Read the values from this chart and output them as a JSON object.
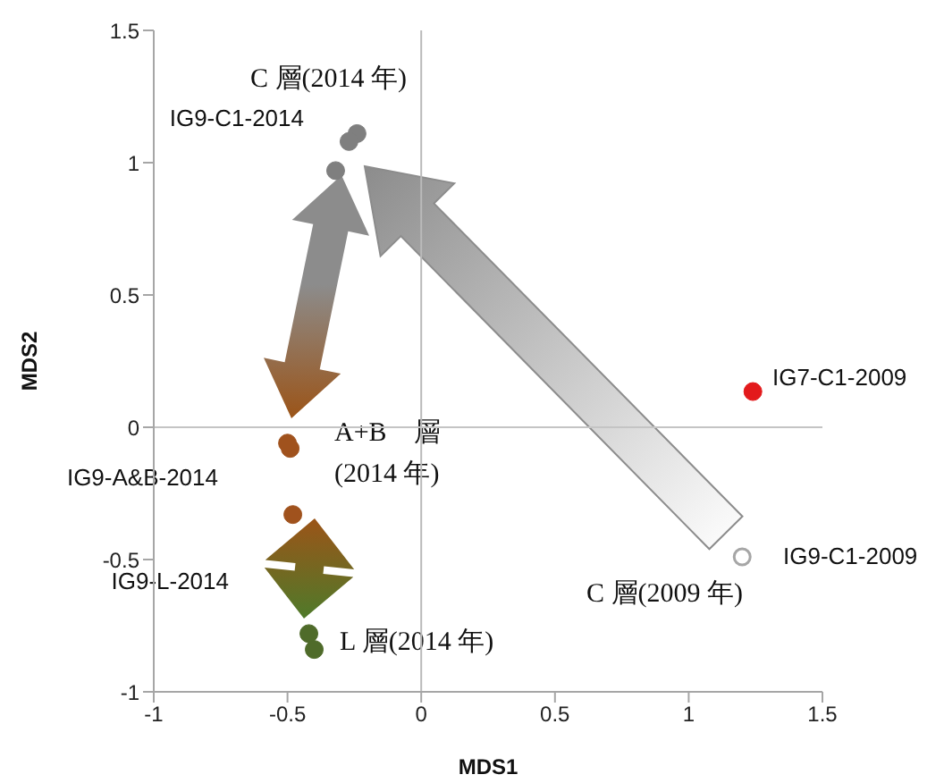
{
  "chart_data": {
    "type": "scatter",
    "xlabel": "MDS1",
    "ylabel": "MDS2",
    "xlim": [
      -1,
      1.5
    ],
    "xticks": [
      -1,
      -0.5,
      0,
      0.5,
      1,
      1.5
    ],
    "ylim": [
      -1,
      1.5
    ],
    "yticks": [
      -1,
      -0.5,
      0,
      0.5,
      1,
      1.5
    ],
    "marker": "circle",
    "series": [
      {
        "color": "#7f7f7f",
        "x": [
          -0.24,
          -0.27,
          -0.32
        ],
        "values": [
          1.11,
          1.08,
          0.97
        ]
      },
      {
        "color": "#a0521d",
        "x": [
          -0.49,
          -0.5,
          -0.48
        ],
        "values": [
          -0.08,
          -0.06,
          -0.33
        ]
      },
      {
        "color": "#4f6b2a",
        "x": [
          -0.42,
          -0.4
        ],
        "values": [
          -0.78,
          -0.84
        ]
      },
      {
        "color": "#e31a1c",
        "x": [
          1.24
        ],
        "values": [
          0.135
        ]
      },
      {
        "color": "#a6a6a6",
        "x": [
          1.2
        ],
        "values": [
          -0.49
        ]
      }
    ],
    "ref_lines": [
      {
        "axis": "x",
        "value": 0,
        "color": "#bababa"
      },
      {
        "axis": "y",
        "value": 0,
        "color": "#c4c4c4"
      }
    ],
    "annotations": [
      "C 層(2014 年)",
      "IG9-C1-2014",
      "A+B　層",
      "(2014 年)",
      "IG9-A&B-2014",
      "IG9-L-2014",
      "L 層(2014 年)",
      "IG7-C1-2009",
      "IG9-C1-2009",
      "C 層(2009 年)"
    ]
  }
}
